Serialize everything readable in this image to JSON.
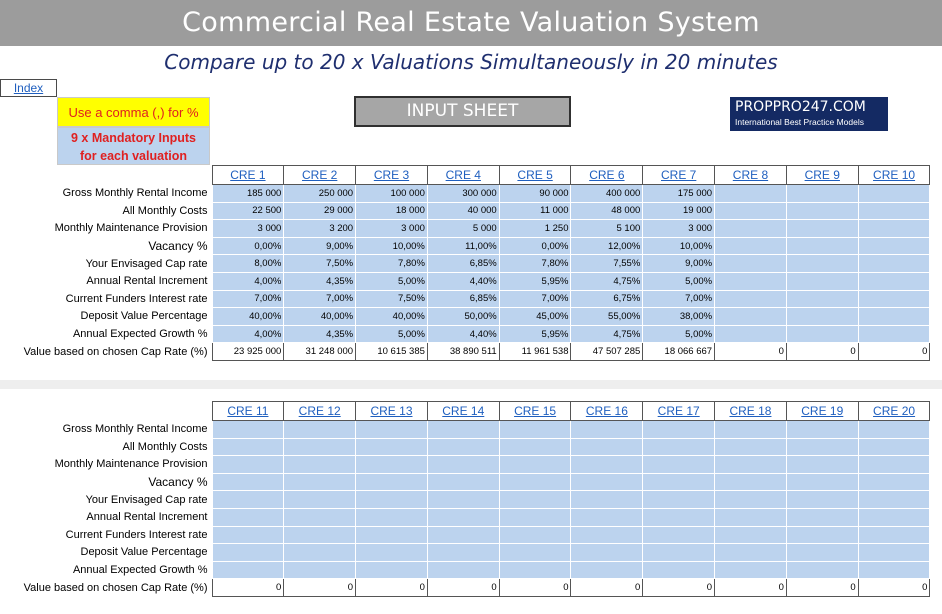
{
  "header": {
    "title": "Commercial Real Estate Valuation System",
    "subtitle": "Compare up to 20 x Valuations Simultaneously in 20 minutes"
  },
  "index_link": "Index",
  "notes": {
    "comma": "Use a comma (,) for %",
    "mandatory_line1": "9 x Mandatory Inputs",
    "mandatory_line2": "for each valuation"
  },
  "sheet_label": "INPUT SHEET",
  "brand": {
    "name": "PROPPRO247.COM",
    "tagline": "International Best Practice Models"
  },
  "row_labels": [
    "Gross Monthly Rental Income",
    "All Monthly Costs",
    "Monthly Maintenance Provision",
    "Vacancy %",
    "Your Envisaged Cap rate",
    "Annual Rental Increment",
    "Current Funders Interest rate",
    "Deposit Value Percentage",
    "Annual Expected Growth %",
    "Value based on chosen Cap Rate (%)"
  ],
  "block1": {
    "columns": [
      "CRE 1",
      "CRE 2",
      "CRE 3",
      "CRE 4",
      "CRE 5",
      "CRE 6",
      "CRE 7",
      "CRE 8",
      "CRE 9",
      "CRE 10"
    ],
    "rows": [
      [
        "185 000",
        "250 000",
        "100 000",
        "300 000",
        "90 000",
        "400 000",
        "175 000",
        "",
        "",
        ""
      ],
      [
        "22 500",
        "29 000",
        "18 000",
        "40 000",
        "11 000",
        "48 000",
        "19 000",
        "",
        "",
        ""
      ],
      [
        "3 000",
        "3 200",
        "3 000",
        "5 000",
        "1 250",
        "5 100",
        "3 000",
        "",
        "",
        ""
      ],
      [
        "0,00%",
        "9,00%",
        "10,00%",
        "11,00%",
        "0,00%",
        "12,00%",
        "10,00%",
        "",
        "",
        ""
      ],
      [
        "8,00%",
        "7,50%",
        "7,80%",
        "6,85%",
        "7,80%",
        "7,55%",
        "9,00%",
        "",
        "",
        ""
      ],
      [
        "4,00%",
        "4,35%",
        "5,00%",
        "4,40%",
        "5,95%",
        "4,75%",
        "5,00%",
        "",
        "",
        ""
      ],
      [
        "7,00%",
        "7,00%",
        "7,50%",
        "6,85%",
        "7,00%",
        "6,75%",
        "7,00%",
        "",
        "",
        ""
      ],
      [
        "40,00%",
        "40,00%",
        "40,00%",
        "50,00%",
        "45,00%",
        "55,00%",
        "38,00%",
        "",
        "",
        ""
      ],
      [
        "4,00%",
        "4,35%",
        "5,00%",
        "4,40%",
        "5,95%",
        "4,75%",
        "5,00%",
        "",
        "",
        ""
      ],
      [
        "23 925 000",
        "31 248 000",
        "10 615 385",
        "38 890 511",
        "11 961 538",
        "47 507 285",
        "18 066 667",
        "0",
        "0",
        "0"
      ]
    ]
  },
  "block2": {
    "columns": [
      "CRE 11",
      "CRE 12",
      "CRE 13",
      "CRE 14",
      "CRE 15",
      "CRE 16",
      "CRE 17",
      "CRE 18",
      "CRE 19",
      "CRE 20"
    ],
    "rows": [
      [
        "",
        "",
        "",
        "",
        "",
        "",
        "",
        "",
        "",
        ""
      ],
      [
        "",
        "",
        "",
        "",
        "",
        "",
        "",
        "",
        "",
        ""
      ],
      [
        "",
        "",
        "",
        "",
        "",
        "",
        "",
        "",
        "",
        ""
      ],
      [
        "",
        "",
        "",
        "",
        "",
        "",
        "",
        "",
        "",
        ""
      ],
      [
        "",
        "",
        "",
        "",
        "",
        "",
        "",
        "",
        "",
        ""
      ],
      [
        "",
        "",
        "",
        "",
        "",
        "",
        "",
        "",
        "",
        ""
      ],
      [
        "",
        "",
        "",
        "",
        "",
        "",
        "",
        "",
        "",
        ""
      ],
      [
        "",
        "",
        "",
        "",
        "",
        "",
        "",
        "",
        "",
        ""
      ],
      [
        "",
        "",
        "",
        "",
        "",
        "",
        "",
        "",
        "",
        ""
      ],
      [
        "0",
        "0",
        "0",
        "0",
        "0",
        "0",
        "0",
        "0",
        "0",
        "0"
      ]
    ]
  },
  "colors": {
    "banner": "#9c9c9c",
    "subtitle": "#1f2f6f",
    "input_cell": "#bcd3ee",
    "note_yellow": "#ffff00",
    "note_red": "#e02020",
    "brand_bg": "#142a63",
    "link": "#1f5fbf"
  }
}
